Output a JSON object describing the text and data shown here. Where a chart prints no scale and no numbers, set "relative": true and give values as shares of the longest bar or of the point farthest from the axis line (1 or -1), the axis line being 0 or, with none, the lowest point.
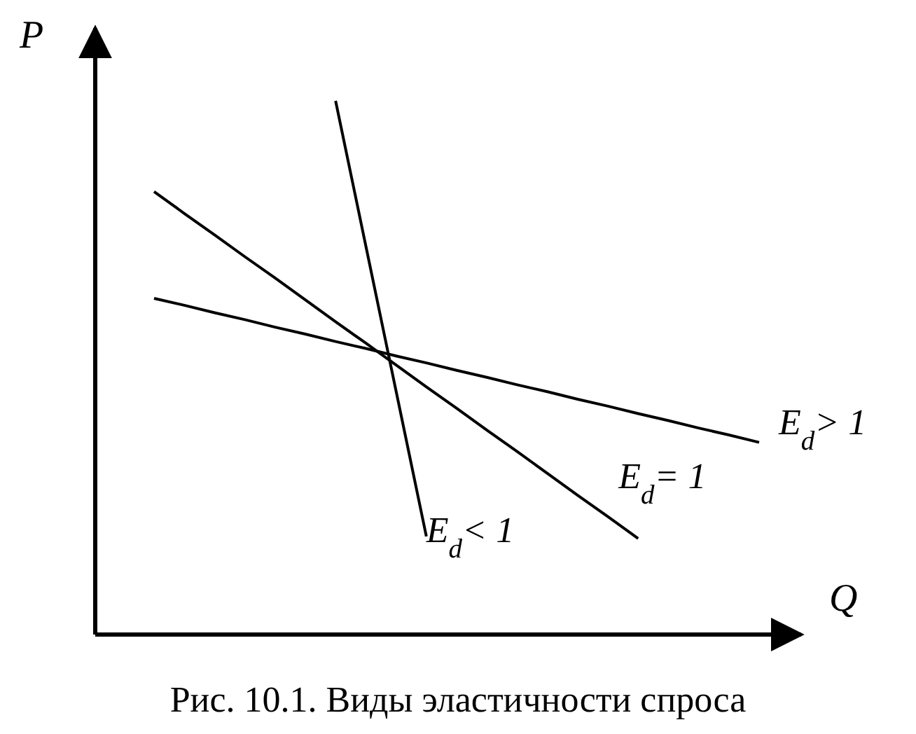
{
  "chart_data": {
    "type": "line",
    "title": "Рис. 10.1. Виды эластичности спроса",
    "xlabel": "Q",
    "ylabel": "P",
    "relative": true,
    "marker": "none",
    "line_style": "solid",
    "legend": false,
    "categories": [
      null,
      null,
      null,
      null,
      null,
      null,
      null,
      null,
      null,
      null,
      null,
      null,
      null,
      null,
      null,
      null,
      null,
      null,
      null,
      null,
      null
    ],
    "series": [
      {
        "name": "E$_{d}$> 1",
        "color": "#000000",
        "values": [
          0.63,
          0.617,
          0.603,
          0.59,
          0.576,
          0.563,
          0.549,
          0.536,
          0.522,
          0.509,
          0.495,
          0.482,
          0.468,
          0.455,
          0.441,
          0.428,
          0.414,
          0.401,
          0.387,
          0.374,
          0.36
        ]
      },
      {
        "name": "E$_{d}$= 1",
        "color": "#000000",
        "values": [
          0.83,
          0.789,
          0.749,
          0.708,
          0.668,
          0.627,
          0.586,
          0.546,
          0.505,
          0.464,
          0.424,
          0.383,
          0.343,
          0.302,
          0.261,
          0.221,
          0.18,
          null,
          null,
          null,
          null
        ]
      },
      {
        "name": "E$_{d}$< 1",
        "color": "#000000",
        "values": [
          null,
          null,
          null,
          null,
          null,
          null,
          1.0,
          0.728,
          0.456,
          0.184,
          null,
          null,
          null,
          null,
          null,
          null,
          null,
          null,
          null,
          null,
          null
        ]
      }
    ]
  }
}
